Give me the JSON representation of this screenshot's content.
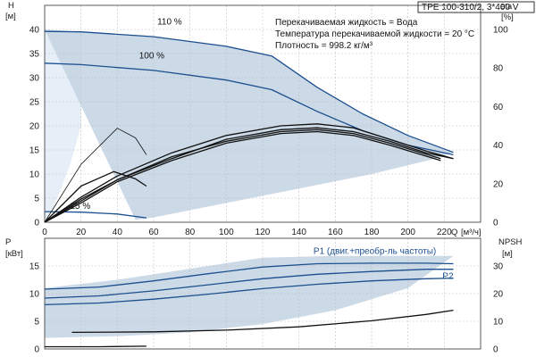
{
  "info": {
    "model": "TPE 100-310/2, 3*400 V",
    "line1": "Перекачиваемая жидкость = Вода",
    "line2": "Температура перекачиваемой жидкости = 20 °C",
    "line3": "Плотность = 998.2 кг/м³"
  },
  "axes": {
    "top_left": {
      "title": "H",
      "unit": "[м]"
    },
    "top_right": {
      "title": "eta",
      "unit": "[%]"
    },
    "x": {
      "title": "Q",
      "unit": "[м³/ч]"
    },
    "bottom_left": {
      "title": "P",
      "unit": "[кВт]"
    },
    "bottom_right": {
      "title": "NPSH",
      "unit": "[м]"
    }
  },
  "colors": {
    "curve": "#1b4f8f",
    "envelope": "#c7d5e3",
    "light_region": "#e6eff8",
    "grid": "#c0c0c0",
    "axis": "#333333"
  },
  "chart_data": [
    {
      "type": "line",
      "panel": "head-efficiency",
      "xlabel": "Q [м³/ч]",
      "ylabel": "H [м]",
      "y2label": "eta [%]",
      "xlim": [
        0,
        240
      ],
      "ylim": [
        0,
        45
      ],
      "y2lim": [
        0,
        112.5
      ],
      "xticks": [
        0,
        20,
        40,
        60,
        80,
        100,
        120,
        140,
        160,
        180,
        200,
        220
      ],
      "yticks": [
        0,
        5,
        10,
        15,
        20,
        25,
        30,
        35,
        40
      ],
      "y2ticks": [
        0,
        20,
        40,
        60,
        80,
        100
      ],
      "grid": true,
      "envelope": [
        [
          0,
          40
        ],
        [
          20,
          39.5
        ],
        [
          60,
          38.5
        ],
        [
          100,
          36.5
        ],
        [
          125,
          34.5
        ],
        [
          150,
          28
        ],
        [
          175,
          22.5
        ],
        [
          200,
          18
        ],
        [
          225,
          14.5
        ],
        [
          213,
          13
        ],
        [
          180,
          10
        ],
        [
          140,
          7
        ],
        [
          100,
          4
        ],
        [
          60,
          1
        ],
        [
          50,
          0.5
        ]
      ],
      "light_region": [
        [
          0,
          40
        ],
        [
          20,
          39.5
        ],
        [
          20,
          20
        ],
        [
          14,
          12
        ],
        [
          8,
          6
        ],
        [
          3,
          2
        ],
        [
          0,
          0
        ]
      ],
      "series": [
        {
          "name": "110 %",
          "axis": "left",
          "points": [
            [
              0,
              39.6
            ],
            [
              20,
              39.5
            ],
            [
              60,
              38.5
            ],
            [
              100,
              36.5
            ],
            [
              125,
              34.5
            ],
            [
              150,
              28
            ],
            [
              175,
              22.5
            ],
            [
              200,
              18
            ],
            [
              225,
              14.5
            ]
          ]
        },
        {
          "name": "100 %",
          "axis": "left",
          "points": [
            [
              0,
              33
            ],
            [
              20,
              32.7
            ],
            [
              60,
              31.5
            ],
            [
              100,
              29.5
            ],
            [
              125,
              27.5
            ],
            [
              150,
              23
            ],
            [
              175,
              19
            ],
            [
              200,
              16
            ],
            [
              225,
              14
            ]
          ]
        },
        {
          "name": "25 %",
          "axis": "left",
          "points": [
            [
              0,
              2.2
            ],
            [
              20,
              2.1
            ],
            [
              40,
              1.7
            ],
            [
              56,
              0.9
            ]
          ]
        },
        {
          "name": "",
          "axis": "left",
          "points": [
            [
              0,
              0
            ],
            [
              20,
              12
            ],
            [
              40,
              19.5
            ],
            [
              50,
              17.5
            ],
            [
              56,
              14
            ]
          ]
        },
        {
          "name": "",
          "axis": "left",
          "points": [
            [
              0,
              0
            ],
            [
              20,
              7.5
            ],
            [
              38,
              10.5
            ],
            [
              50,
              9
            ],
            [
              56,
              7.5
            ]
          ]
        },
        {
          "name": "",
          "axis": "right",
          "points": [
            [
              0,
              0
            ],
            [
              20,
              12
            ],
            [
              40,
              22
            ],
            [
              70,
              33
            ],
            [
              100,
              43
            ],
            [
              130,
              48
            ],
            [
              150,
              49
            ],
            [
              170,
              47
            ],
            [
              190,
              42
            ],
            [
              210,
              36
            ],
            [
              225,
              33
            ]
          ]
        },
        {
          "name": "",
          "axis": "right",
          "points": [
            [
              0,
              0
            ],
            [
              20,
              13
            ],
            [
              40,
              24
            ],
            [
              70,
              36
            ],
            [
              100,
              45
            ],
            [
              130,
              50
            ],
            [
              150,
              51
            ],
            [
              170,
              49
            ],
            [
              190,
              43
            ],
            [
              210,
              37
            ],
            [
              225,
              33
            ]
          ]
        },
        {
          "name": "",
          "axis": "right",
          "points": [
            [
              0,
              0
            ],
            [
              20,
              10
            ],
            [
              40,
              21
            ],
            [
              70,
              32
            ],
            [
              100,
              41
            ],
            [
              130,
              46
            ],
            [
              150,
              47
            ],
            [
              170,
              45
            ],
            [
              190,
              40
            ],
            [
              218,
              32
            ]
          ]
        },
        {
          "name": "",
          "axis": "right",
          "points": [
            [
              0,
              0
            ],
            [
              20,
              11
            ],
            [
              40,
              22
            ],
            [
              70,
              34
            ],
            [
              100,
              42
            ],
            [
              130,
              47
            ],
            [
              150,
              48
            ],
            [
              170,
              46
            ],
            [
              190,
              41
            ],
            [
              218,
              33
            ]
          ]
        }
      ],
      "labels": [
        {
          "text": "110 %",
          "x": 62,
          "y": 41
        },
        {
          "text": "100 %",
          "x": 52,
          "y": 34
        },
        {
          "text": "25 %",
          "x": 14,
          "y": 2.8
        }
      ]
    },
    {
      "type": "line",
      "panel": "power-npsh",
      "xlabel": "Q [м³/ч]",
      "ylabel": "P [кВт]",
      "y2label": "NPSH [м]",
      "xlim": [
        0,
        240
      ],
      "ylim": [
        0,
        20
      ],
      "y2lim": [
        0,
        40
      ],
      "yticks": [
        0,
        5,
        10,
        15
      ],
      "y2ticks": [
        0,
        10,
        20,
        30
      ],
      "grid": true,
      "envelope": [
        [
          0,
          11
        ],
        [
          40,
          12.5
        ],
        [
          80,
          14.5
        ],
        [
          120,
          16.5
        ],
        [
          160,
          16.8
        ],
        [
          200,
          16.8
        ],
        [
          225,
          16.8
        ],
        [
          200,
          11
        ],
        [
          160,
          7
        ],
        [
          120,
          4.5
        ],
        [
          80,
          3
        ],
        [
          40,
          2.3
        ],
        [
          0,
          2
        ]
      ],
      "series": [
        {
          "name": "P1 (двиг.+преобр-ль частоты)",
          "axis": "left",
          "points": [
            [
              0,
              10.8
            ],
            [
              30,
              11.2
            ],
            [
              60,
              12.3
            ],
            [
              90,
              13.6
            ],
            [
              120,
              14.8
            ],
            [
              150,
              15.4
            ],
            [
              180,
              15.5
            ],
            [
              210,
              15.5
            ],
            [
              225,
              15.4
            ]
          ]
        },
        {
          "name": "P2",
          "axis": "left",
          "points": [
            [
              0,
              9.2
            ],
            [
              30,
              9.6
            ],
            [
              60,
              10.5
            ],
            [
              90,
              11.6
            ],
            [
              120,
              12.7
            ],
            [
              150,
              13.5
            ],
            [
              180,
              14
            ],
            [
              210,
              14.4
            ],
            [
              225,
              14.4
            ]
          ]
        },
        {
          "name": "",
          "axis": "left",
          "points": [
            [
              0,
              8
            ],
            [
              30,
              8.3
            ],
            [
              60,
              9
            ],
            [
              90,
              9.9
            ],
            [
              120,
              10.9
            ],
            [
              150,
              11.7
            ],
            [
              180,
              12.3
            ],
            [
              210,
              12.7
            ],
            [
              225,
              12.8
            ]
          ]
        },
        {
          "name": "NPSH",
          "axis": "right",
          "points": [
            [
              15,
              6
            ],
            [
              60,
              6.2
            ],
            [
              100,
              6.8
            ],
            [
              140,
              8
            ],
            [
              180,
              10.2
            ],
            [
              210,
              12.5
            ],
            [
              225,
              14
            ]
          ]
        },
        {
          "name": "",
          "axis": "left",
          "points": [
            [
              0,
              0.4
            ],
            [
              30,
              0.4
            ],
            [
              56,
              0.5
            ]
          ]
        }
      ],
      "labels": [
        {
          "text": "P1 (двиг.+преобр-ль частоты)",
          "x": 148,
          "y": 17.2
        },
        {
          "text": "P2",
          "x": 219,
          "y": 12.7
        }
      ]
    }
  ]
}
